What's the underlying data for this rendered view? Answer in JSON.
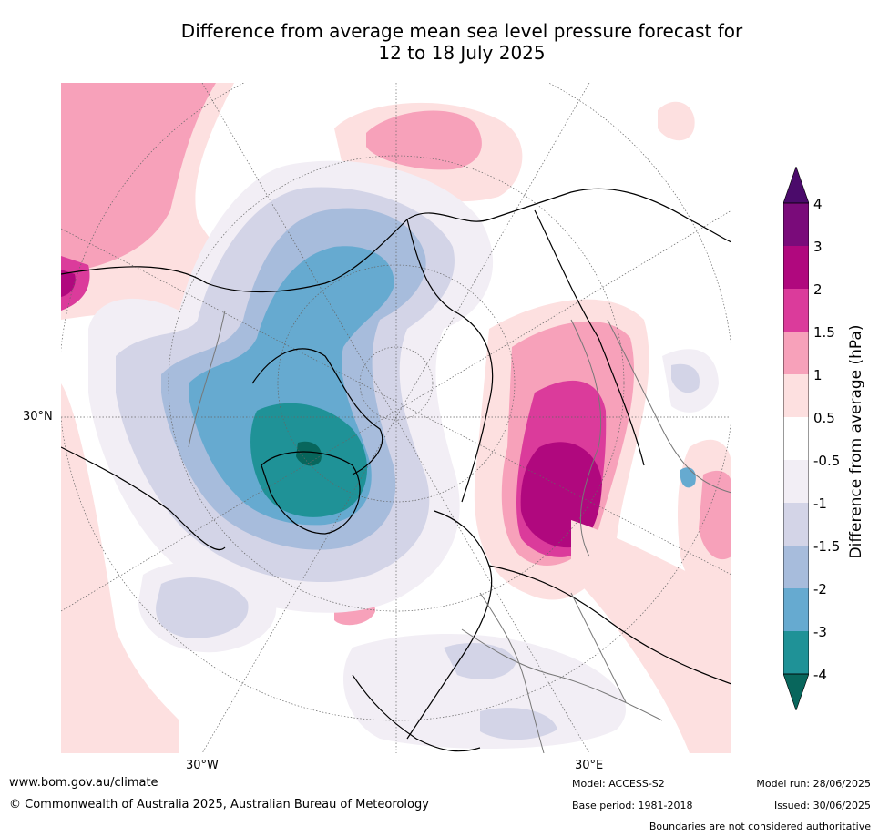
{
  "title": {
    "line1": "Difference from average mean sea level pressure forecast for",
    "line2": "12 to 18 July 2025"
  },
  "axes": {
    "lat_label": "30°N",
    "lon_label_west": "30°W",
    "lon_label_east": "30°E"
  },
  "colorbar": {
    "title": "Difference from average (hPa)",
    "ticks": [
      "4",
      "3",
      "2",
      "1.5",
      "1",
      "0.5",
      "-0.5",
      "-1",
      "-1.5",
      "-2",
      "-3",
      "-4"
    ],
    "colors": [
      "#4b0b6b",
      "#7a0b7a",
      "#b0087e",
      "#db3b9b",
      "#f7a1ba",
      "#fde0e0",
      "#ffffff",
      "#f2eef5",
      "#d3d4e7",
      "#a7bcdc",
      "#66aad0",
      "#1f9297",
      "#08665c"
    ]
  },
  "footer": {
    "website": "www.bom.gov.au/climate",
    "copyright": "© Commonwealth of Australia 2025, Australian Bureau of Meteorology",
    "model": "Model: ACCESS-S2",
    "base_period": "Base period: 1981-2018",
    "model_run": "Model run: 28/06/2025",
    "issued": "Issued: 30/06/2025",
    "disclaimer": "Boundaries are not considered authoritative"
  }
}
